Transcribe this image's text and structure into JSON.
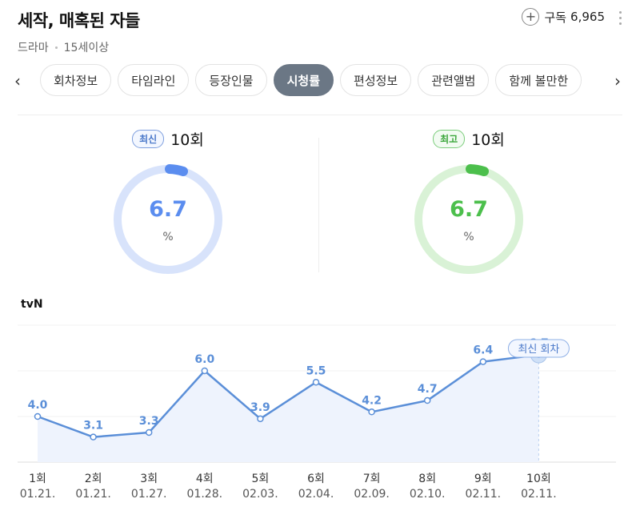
{
  "header": {
    "title": "세작, 매혹된 자들",
    "genre": "드라마",
    "rating": "15세이상"
  },
  "subscribe": {
    "label": "구독",
    "count": "6,965"
  },
  "tabs": [
    "회차정보",
    "타임라인",
    "등장인물",
    "시청률",
    "편성정보",
    "관련앨범",
    "함께 볼만한"
  ],
  "active_tab": "시청률",
  "stats": {
    "latest": {
      "badge": "최신",
      "episode": "10회",
      "value": "6.7",
      "unit": "%",
      "color": "#5b8def",
      "track": "#d8e3fb"
    },
    "best": {
      "badge": "최고",
      "episode": "10회",
      "value": "6.7",
      "unit": "%",
      "color": "#4cbf4c",
      "track": "#d9f2d6"
    }
  },
  "channel": "tvN",
  "chart_data": {
    "type": "line",
    "categories": [
      "1회",
      "2회",
      "3회",
      "4회",
      "5회",
      "6회",
      "7회",
      "8회",
      "9회",
      "10회"
    ],
    "dates": [
      "01.21.",
      "01.21.",
      "01.27.",
      "01.28.",
      "02.03.",
      "02.04.",
      "02.09.",
      "02.10.",
      "02.11.",
      "02.11."
    ],
    "values": [
      4.0,
      3.1,
      3.3,
      6.0,
      3.9,
      5.5,
      4.2,
      4.7,
      6.4,
      6.7
    ],
    "labels": [
      "4.0",
      "3.1",
      "3.3",
      "6.0",
      "3.9",
      "5.5",
      "4.2",
      "4.7",
      "6.4",
      "6.7"
    ],
    "annotation": "최신 회차",
    "line_color": "#5b8fd8"
  }
}
